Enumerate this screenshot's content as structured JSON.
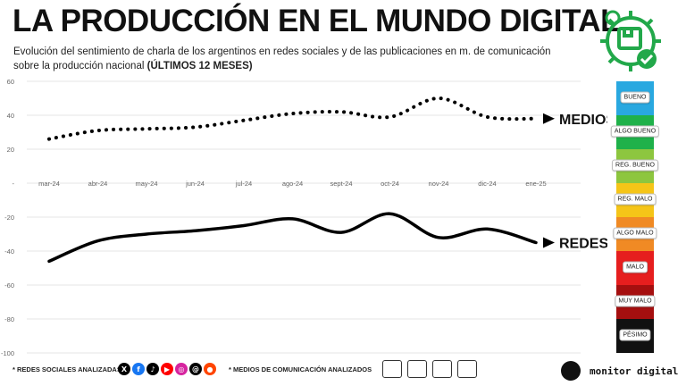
{
  "header": {
    "title": "LA PRODUCCIÓN EN EL MUNDO DIGITAL",
    "subtitle": "Evolución del sentimiento de charla de los argentinos en redes sociales y de las publicaciones en m. de comunicación sobre la producción nacional",
    "subtitle_bold": "(ÚLTIMOS 12 MESES)"
  },
  "logo": {
    "icon": "production-gear-check-icon",
    "color": "#22a84a"
  },
  "chart_data": {
    "type": "line",
    "categories": [
      "mar-24",
      "abr-24",
      "may-24",
      "jun-24",
      "jul-24",
      "ago-24",
      "sept-24",
      "oct-24",
      "nov-24",
      "dic-24",
      "ene-25"
    ],
    "ylim": [
      -100,
      60
    ],
    "yticks": [
      60,
      40,
      20,
      0,
      -20,
      -40,
      -60,
      -80,
      -100
    ],
    "ytick_labels": [
      "60",
      "40",
      "20",
      "-",
      "-20",
      "-40",
      "-60",
      "-80",
      "-100"
    ],
    "series": [
      {
        "name": "MEDIOS",
        "style": "dotted",
        "color": "#000000",
        "values": [
          26,
          31,
          32,
          33,
          37,
          41,
          42,
          39,
          50,
          39,
          38
        ]
      },
      {
        "name": "REDES",
        "style": "solid",
        "color": "#000000",
        "values": [
          -46,
          -34,
          -30,
          -28,
          -25,
          -21,
          -29,
          -18,
          -32,
          -27,
          -35
        ]
      }
    ]
  },
  "scale": {
    "bands": [
      {
        "color": "#29a8e0",
        "label": "BUENO"
      },
      {
        "color": "#1fb14a",
        "label": "ALGO BUENO"
      },
      {
        "color": "#8dc63f",
        "label": "REG. BUENO"
      },
      {
        "color": "#f5c518",
        "label": "REG. MALO"
      },
      {
        "color": "#f08a24",
        "label": "ALGO MALO"
      },
      {
        "color": "#e61e1e",
        "label": "MALO"
      },
      {
        "color": "#a50f0f",
        "label": "MUY MALO"
      },
      {
        "color": "#111111",
        "label": "PÉSIMO"
      }
    ]
  },
  "footer": {
    "social_label": "* REDES SOCIALES ANALIZADAS",
    "media_label": "* MEDIOS DE COMUNICACIÓN ANALIZADOS",
    "social_icons": [
      {
        "name": "x-icon",
        "color": "#000000",
        "glyph": "X"
      },
      {
        "name": "facebook-icon",
        "color": "#1877f2",
        "glyph": "f"
      },
      {
        "name": "tiktok-icon",
        "color": "#000000",
        "glyph": "♪"
      },
      {
        "name": "youtube-icon",
        "color": "#ff0000",
        "glyph": "▶"
      },
      {
        "name": "instagram-icon",
        "color": "#d6249f",
        "glyph": "◎"
      },
      {
        "name": "threads-icon",
        "color": "#000000",
        "glyph": "@"
      },
      {
        "name": "reddit-icon",
        "color": "#ff4500",
        "glyph": "●"
      }
    ],
    "media_icons": [
      "web-icon",
      "microphone-icon",
      "radio-icon",
      "tv-icon"
    ],
    "brand": "monitor digital"
  }
}
